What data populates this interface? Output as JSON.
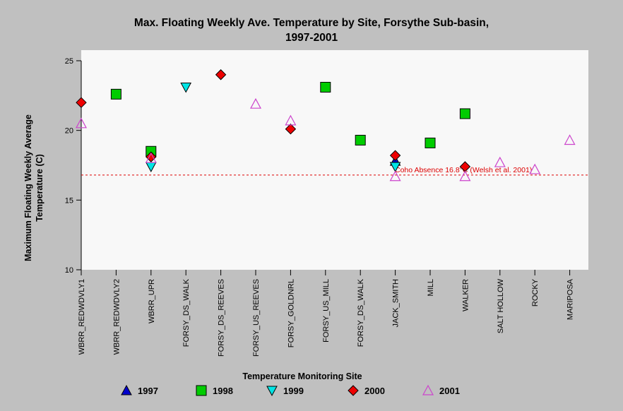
{
  "chart_data": {
    "type": "scatter",
    "title_lines": [
      "Max. Floating Weekly Ave. Temperature by Site, Forsythe Sub-basin,",
      "1997-2001"
    ],
    "xlabel": "Temperature Monitoring Site",
    "ylabel_lines": [
      "Maximum Floating Weekly Average",
      "Temperature (C)"
    ],
    "ylim": [
      10,
      25
    ],
    "yticks": [
      10,
      15,
      20,
      25
    ],
    "categories": [
      "WBRR_REDWDVLY1",
      "WBRR_REDWDVLY2",
      "WBRR_UPR",
      "FORSY_DS_WALK",
      "FORSY_DS_REEVES",
      "FORSY_US_REEVES",
      "FORSY_GOLDNRL",
      "FORSY_US_MILL",
      "FORSY_DS_WALK",
      "JACK_SMITH",
      "MILL",
      "WALKER",
      "SALT HOLLOW",
      "ROCKY",
      "MARIPOSA"
    ],
    "series": [
      {
        "name": "1997",
        "marker": "triangle-up",
        "color": "#0000cc",
        "values": [
          null,
          null,
          null,
          null,
          null,
          null,
          null,
          null,
          null,
          17.8,
          null,
          null,
          null,
          null,
          null
        ]
      },
      {
        "name": "1998",
        "marker": "square",
        "color": "#00cc00",
        "values": [
          null,
          22.6,
          18.5,
          null,
          null,
          null,
          null,
          23.1,
          19.3,
          null,
          19.1,
          21.2,
          null,
          null,
          null
        ]
      },
      {
        "name": "1999",
        "marker": "triangle-down",
        "color": "#00e5e5",
        "values": [
          null,
          null,
          17.4,
          23.1,
          null,
          null,
          null,
          null,
          null,
          17.4,
          null,
          null,
          null,
          null,
          null
        ]
      },
      {
        "name": "2000",
        "marker": "diamond",
        "color": "#ee0000",
        "values": [
          22.0,
          null,
          18.1,
          null,
          24.0,
          null,
          20.1,
          null,
          null,
          18.2,
          null,
          17.4,
          null,
          null,
          null
        ]
      },
      {
        "name": "2001",
        "marker": "triangle-up-open",
        "color": "#cc44cc",
        "values": [
          20.5,
          null,
          18.0,
          null,
          null,
          21.9,
          20.7,
          null,
          null,
          16.7,
          null,
          16.7,
          17.7,
          17.2,
          19.3
        ]
      }
    ],
    "reference_line": {
      "value": 16.8,
      "label": "Coho Absence 16.8°C (Welsh et al. 2001)",
      "color": "#dd0000"
    },
    "grid": false,
    "legend_position": "bottom"
  },
  "colors": {
    "background": "#c0c0c0",
    "plot_background": "#f8f8f8"
  }
}
